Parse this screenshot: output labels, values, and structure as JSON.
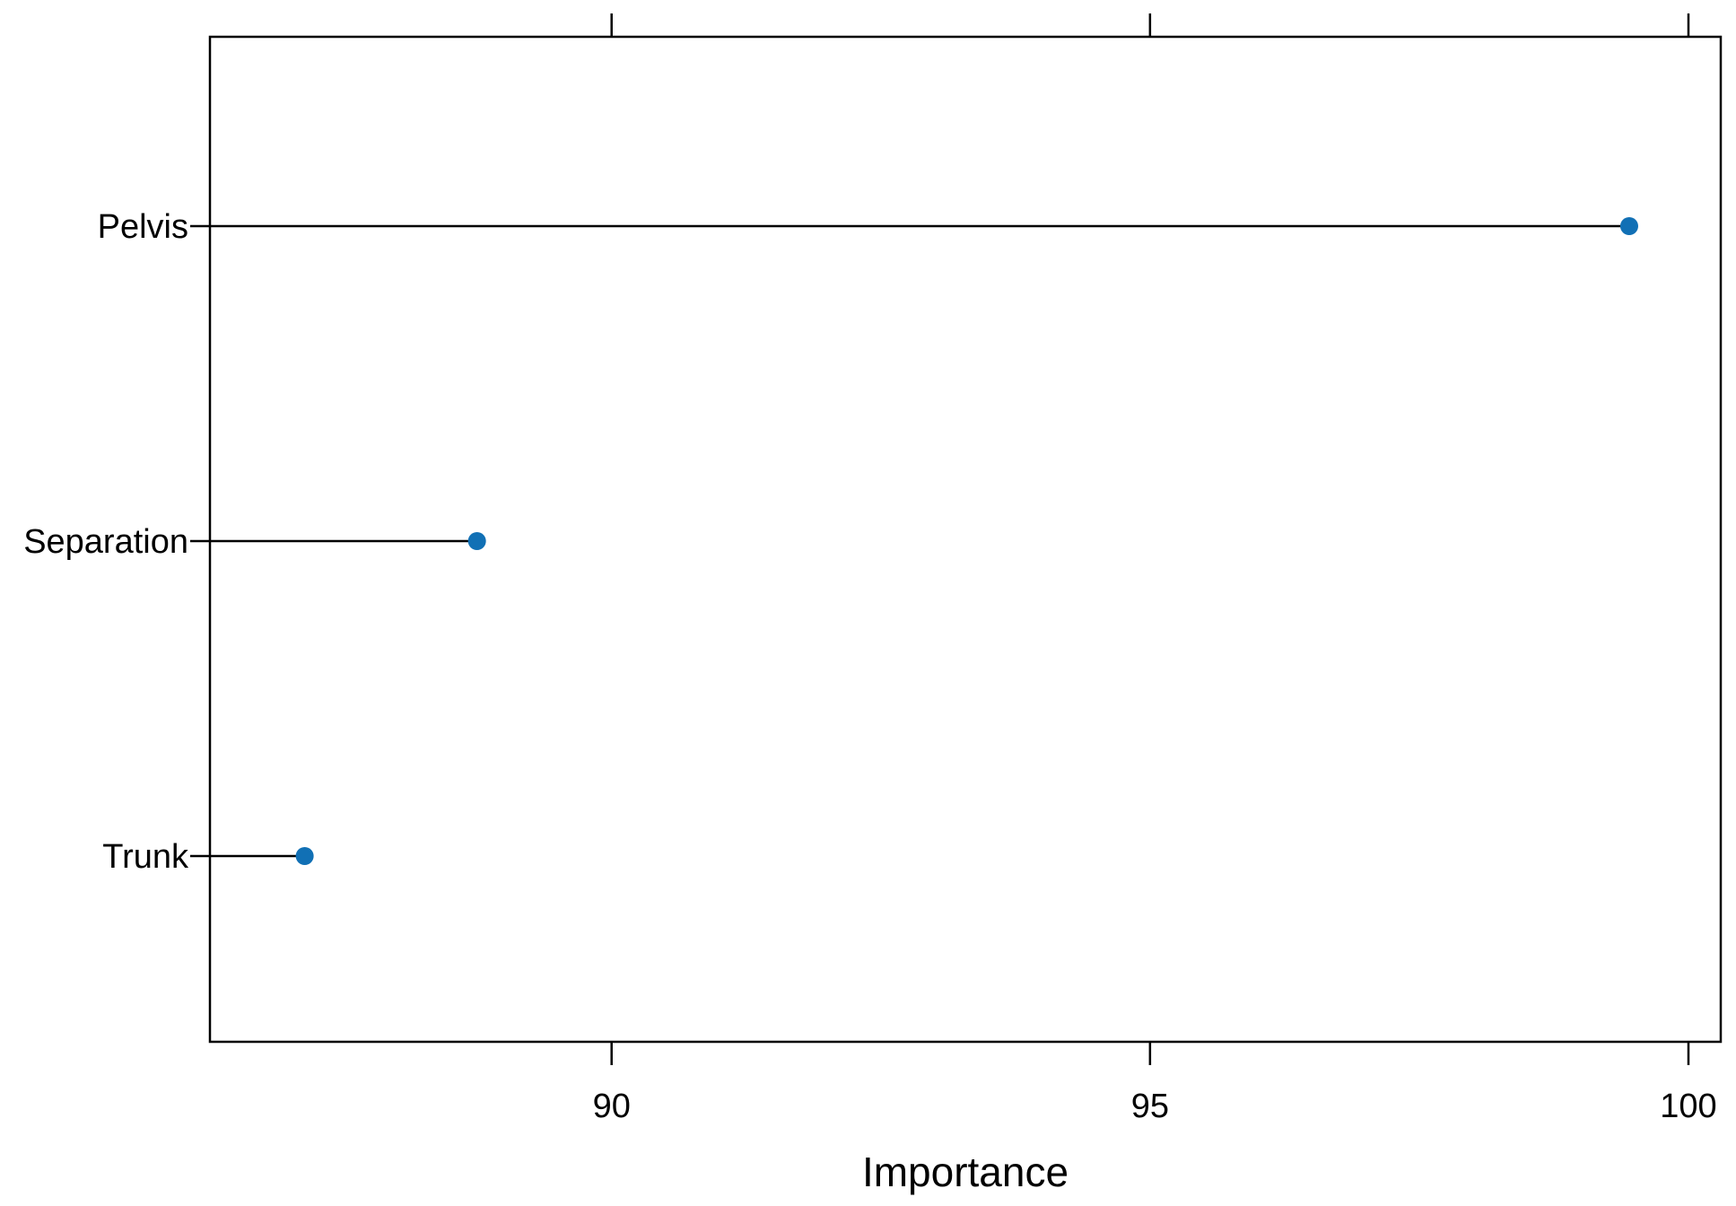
{
  "chart_data": {
    "type": "dot",
    "title": "",
    "xlabel": "Importance",
    "ylabel": "",
    "categories": [
      "Pelvis",
      "Separation",
      "Trunk"
    ],
    "values": [
      99.45,
      88.75,
      87.15
    ],
    "xlim": [
      86.27,
      100.3
    ],
    "xticks": [
      90,
      95,
      100
    ],
    "xtick_labels": [
      "90",
      "95",
      "100"
    ],
    "grid": false,
    "legend": "none"
  },
  "colors": {
    "point": "#1170b5",
    "line": "#000000"
  }
}
